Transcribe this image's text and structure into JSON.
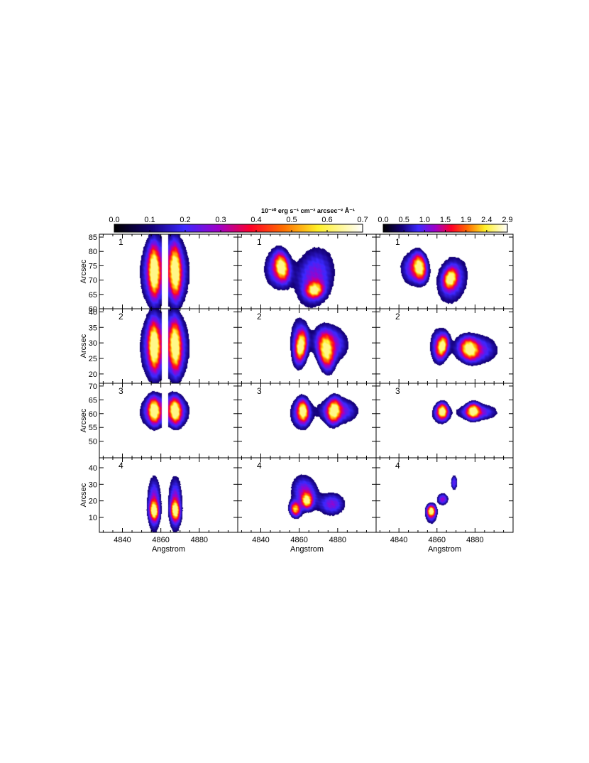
{
  "chart_data": {
    "type": "heatmap",
    "description_free": true,
    "colorbars": [
      {
        "title": "10⁻³⁰ erg s⁻¹ cm⁻² arcsec⁻² Å⁻¹",
        "ticks": [
          "0.0",
          "0.1",
          "0.2",
          "0.3",
          "0.4",
          "0.5",
          "0.6",
          "0.7"
        ],
        "range": [
          0.0,
          0.7
        ]
      },
      {
        "title": "",
        "ticks": [
          "0.0",
          "0.5",
          "1.0",
          "1.5",
          "1.9",
          "2.4",
          "2.9"
        ],
        "range": [
          0.0,
          2.9
        ]
      }
    ],
    "xlabel": "Angstrom",
    "ylabel": "Arcsec",
    "xticks": [
      "4840",
      "4860",
      "4880"
    ],
    "xlim": [
      4828,
      4900
    ],
    "rows": [
      {
        "label": "1",
        "ylim": [
          60,
          86
        ],
        "yticks": [
          "60",
          "65",
          "70",
          "75",
          "80",
          "85"
        ]
      },
      {
        "label": "2",
        "ylim": [
          17,
          41
        ],
        "yticks": [
          "20",
          "25",
          "30",
          "35",
          "40"
        ]
      },
      {
        "label": "3",
        "ylim": [
          44,
          71
        ],
        "yticks": [
          "50",
          "55",
          "60",
          "65",
          "70"
        ]
      },
      {
        "label": "4",
        "ylim": [
          1,
          46
        ],
        "yticks": [
          "10",
          "20",
          "30",
          "40"
        ]
      }
    ],
    "panels": [
      [
        {
          "blobs": [
            [
              4856.5,
              73,
              2.5,
              8,
              1.0,
              0.2
            ],
            [
              4867.5,
              73,
              2.5,
              8,
              1.0,
              0.2
            ],
            [
              4856.5,
              73,
              6,
              10,
              0.55,
              -0.1
            ],
            [
              4867.5,
              73,
              6,
              10,
              0.55,
              0.1
            ]
          ],
          "mask": [
            4860.5,
            4863.8
          ],
          "scale": 0
        },
        {
          "blobs": [
            [
              4851,
              74.5,
              3,
              4,
              1.0,
              0.5
            ],
            [
              4849,
              74,
              6,
              6,
              0.5,
              0
            ],
            [
              4868,
              66.5,
              4,
              2.5,
              1.0,
              -0.2
            ],
            [
              4868,
              71,
              9,
              9,
              0.45,
              -0.3
            ]
          ],
          "mask": null,
          "scale": 0
        },
        {
          "blobs": [
            [
              4851,
              74.5,
              3,
              4,
              1.0,
              0.4
            ],
            [
              4848,
              74,
              6,
              5,
              0.5,
              0
            ],
            [
              4867,
              70.5,
              3,
              3,
              1.0,
              -0.4
            ],
            [
              4868,
              70,
              7,
              7,
              0.45,
              -0.3
            ]
          ],
          "mask": null,
          "scale": 1
        }
      ],
      [
        {
          "blobs": [
            [
              4856.5,
              29,
              2.5,
              7,
              1.0,
              0.2
            ],
            [
              4867.5,
              29,
              2.5,
              7,
              1.0,
              0.2
            ],
            [
              4856.5,
              29,
              6,
              9,
              0.55,
              -0.1
            ],
            [
              4867.5,
              29,
              6,
              9,
              0.55,
              0.1
            ]
          ],
          "mask": [
            4860.5,
            4863.8
          ],
          "scale": 0
        },
        {
          "blobs": [
            [
              4861,
              29,
              2.5,
              4,
              1.0,
              -0.6
            ],
            [
              4874,
              27,
              3.5,
              5,
              1.0,
              0.4
            ],
            [
              4876,
              30,
              8,
              5,
              0.5,
              0.2
            ],
            [
              4860,
              30,
              4,
              7,
              0.45,
              0
            ]
          ],
          "mask": null,
          "scale": 0
        },
        {
          "blobs": [
            [
              4863,
              29,
              2.5,
              3,
              1.0,
              -0.6
            ],
            [
              4877,
              28,
              4,
              3,
              1.0,
              0.3
            ],
            [
              4880,
              28,
              10,
              4,
              0.5,
              0.1
            ],
            [
              4861,
              29,
              4,
              5,
              0.45,
              0
            ]
          ],
          "mask": null,
          "scale": 1
        }
      ],
      [
        {
          "blobs": [
            [
              4856.5,
              61,
              2.5,
              4,
              1.0,
              0.2
            ],
            [
              4867.5,
              61,
              2.5,
              4,
              1.0,
              0.2
            ],
            [
              4856.5,
              61,
              6,
              5,
              0.55,
              -0.1
            ],
            [
              4867.5,
              61,
              6,
              5,
              0.55,
              0.1
            ]
          ],
          "mask": [
            4860.5,
            4863.8
          ],
          "scale": 0
        },
        {
          "blobs": [
            [
              4862,
              61,
              2.5,
              3.5,
              1.0,
              0.2
            ],
            [
              4878,
              61,
              3,
              4,
              1.0,
              -0.2
            ],
            [
              4880,
              61,
              9,
              4,
              0.5,
              0
            ],
            [
              4861,
              60,
              5,
              5,
              0.45,
              0
            ]
          ],
          "mask": null,
          "scale": 0
        },
        {
          "blobs": [
            [
              4863,
              61,
              2.5,
              2.5,
              1.0,
              0.1
            ],
            [
              4879,
              61,
              3,
              2.5,
              1.0,
              -0.1
            ],
            [
              4881,
              60.5,
              9,
              2.5,
              0.5,
              0
            ],
            [
              4862,
              60,
              4,
              3,
              0.45,
              0
            ]
          ],
          "mask": null,
          "scale": 1
        }
      ],
      [
        {
          "blobs": [
            [
              4856.5,
              14,
              2,
              5,
              1.0,
              0.2
            ],
            [
              4867.5,
              14,
              2,
              5,
              1.0,
              0.2
            ],
            [
              4856.5,
              18,
              3,
              14,
              0.55,
              0
            ],
            [
              4867.5,
              18,
              3,
              14,
              0.55,
              0
            ]
          ],
          "mask": [
            4860.5,
            4863.8
          ],
          "scale": 0
        },
        {
          "blobs": [
            [
              4858,
              15,
              2.5,
              4,
              1.0,
              0.2
            ],
            [
              4864,
              20,
              2.5,
              4,
              1.0,
              0.1
            ],
            [
              4863,
              25,
              6,
              9,
              0.5,
              0.3
            ],
            [
              4877,
              18,
              6,
              6,
              0.45,
              0
            ]
          ],
          "mask": null,
          "scale": 0
        },
        {
          "blobs": [
            [
              4857,
              14,
              2,
              3,
              1.0,
              0
            ],
            [
              4863,
              21,
              2.5,
              3,
              0.5,
              0
            ],
            [
              4869,
              31,
              1.5,
              4,
              0.4,
              0
            ],
            [
              4857,
              12,
              2.5,
              5,
              0.45,
              0
            ]
          ],
          "mask": null,
          "scale": 1
        }
      ]
    ]
  }
}
